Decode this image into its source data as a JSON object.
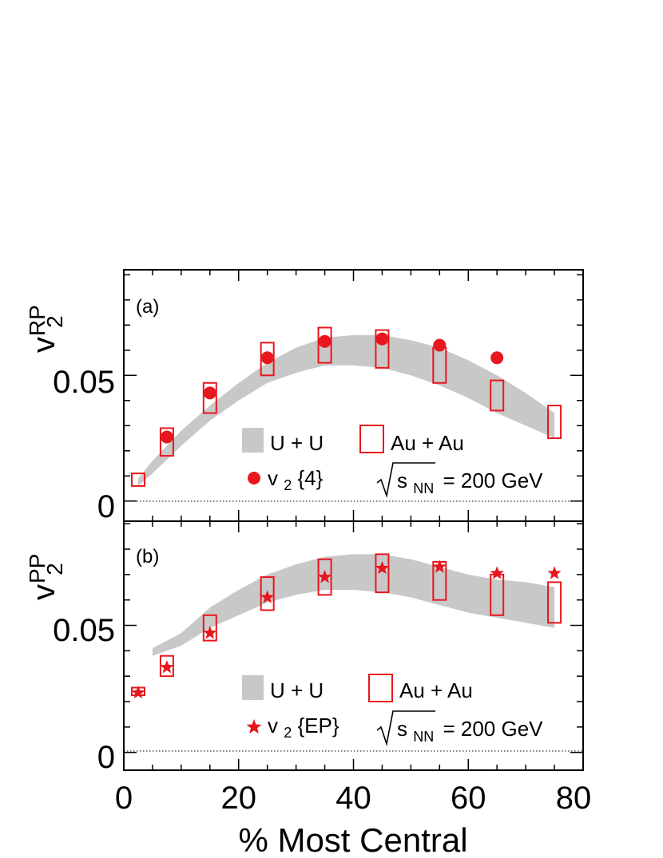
{
  "chart_data": [
    {
      "type": "scatter",
      "panel_label": "(a)",
      "ylabel": {
        "main": "v",
        "sub": "2",
        "sup": "RP"
      },
      "xlabel": "% Most Central",
      "xlim": [
        0,
        80
      ],
      "ylim": [
        -0.008,
        0.092
      ],
      "yticks": [
        {
          "value": 0,
          "label": "0"
        },
        {
          "value": 0.05,
          "label": "0.05"
        }
      ],
      "uu_band": {
        "name": "U + U",
        "color": "#c8c8c8",
        "x": [
          2.5,
          5,
          10,
          15,
          20,
          25,
          30,
          35,
          40,
          45,
          50,
          55,
          60,
          65,
          70,
          75
        ],
        "upper": [
          0.009,
          0.016,
          0.028,
          0.038,
          0.047,
          0.055,
          0.061,
          0.065,
          0.066,
          0.066,
          0.064,
          0.061,
          0.056,
          0.05,
          0.043,
          0.035
        ],
        "lower": [
          0.006,
          0.011,
          0.022,
          0.032,
          0.04,
          0.047,
          0.051,
          0.054,
          0.054,
          0.053,
          0.05,
          0.046,
          0.041,
          0.035,
          0.03,
          0.025
        ]
      },
      "auau_boxes": {
        "name": "Au + Au",
        "color": "#e8161d",
        "boxes": [
          {
            "x": 2.5,
            "low": 0.006,
            "high": 0.011
          },
          {
            "x": 7.5,
            "low": 0.018,
            "high": 0.029
          },
          {
            "x": 15,
            "low": 0.035,
            "high": 0.047
          },
          {
            "x": 25,
            "low": 0.05,
            "high": 0.063
          },
          {
            "x": 35,
            "low": 0.055,
            "high": 0.069
          },
          {
            "x": 45,
            "low": 0.053,
            "high": 0.068
          },
          {
            "x": 55,
            "low": 0.047,
            "high": 0.061
          },
          {
            "x": 65,
            "low": 0.036,
            "high": 0.048
          },
          {
            "x": 75,
            "low": 0.025,
            "high": 0.038
          }
        ]
      },
      "points": {
        "name": "v",
        "sub": "2",
        "suffix": "{4}",
        "marker": "circle",
        "color": "#e8161d",
        "x": [
          7.5,
          15,
          25,
          35,
          45,
          55,
          65
        ],
        "y": [
          0.0255,
          0.043,
          0.057,
          0.0635,
          0.0645,
          0.062,
          0.057
        ],
        "err": [
          0.0012,
          0.001,
          0.0008,
          0.0008,
          0.0008,
          0.001,
          0.002
        ]
      },
      "energy_label": {
        "prefix": "s",
        "sub": "NN",
        "text": "= 200 GeV"
      }
    },
    {
      "type": "scatter",
      "panel_label": "(b)",
      "ylabel": {
        "main": "v",
        "sub": "2",
        "sup": "PP"
      },
      "xlabel": "% Most Central",
      "xlim": [
        0,
        80
      ],
      "xticks": [
        {
          "value": 0,
          "label": "0"
        },
        {
          "value": 20,
          "label": "20"
        },
        {
          "value": 40,
          "label": "40"
        },
        {
          "value": 60,
          "label": "60"
        },
        {
          "value": 80,
          "label": "80"
        }
      ],
      "ylim": [
        -0.007,
        0.091
      ],
      "yticks": [
        {
          "value": 0,
          "label": "0"
        },
        {
          "value": 0.05,
          "label": "0.05"
        }
      ],
      "uu_band": {
        "name": "U + U",
        "color": "#c8c8c8",
        "x": [
          5,
          10,
          15,
          20,
          25,
          30,
          35,
          40,
          45,
          50,
          55,
          60,
          65,
          70,
          75
        ],
        "upper": [
          0.041,
          0.047,
          0.057,
          0.064,
          0.07,
          0.074,
          0.077,
          0.078,
          0.078,
          0.076,
          0.073,
          0.07,
          0.068,
          0.067,
          0.065
        ],
        "lower": [
          0.038,
          0.042,
          0.049,
          0.054,
          0.059,
          0.062,
          0.064,
          0.064,
          0.063,
          0.061,
          0.058,
          0.055,
          0.053,
          0.051,
          0.049
        ]
      },
      "auau_boxes": {
        "name": "Au + Au",
        "color": "#e8161d",
        "boxes": [
          {
            "x": 2.5,
            "low": 0.0225,
            "high": 0.0255
          },
          {
            "x": 7.5,
            "low": 0.03,
            "high": 0.038
          },
          {
            "x": 15,
            "low": 0.044,
            "high": 0.054
          },
          {
            "x": 25,
            "low": 0.056,
            "high": 0.069
          },
          {
            "x": 35,
            "low": 0.062,
            "high": 0.076
          },
          {
            "x": 45,
            "low": 0.063,
            "high": 0.078
          },
          {
            "x": 55,
            "low": 0.06,
            "high": 0.075
          },
          {
            "x": 65,
            "low": 0.054,
            "high": 0.07
          },
          {
            "x": 75,
            "low": 0.051,
            "high": 0.067
          }
        ]
      },
      "points": {
        "name": "v",
        "sub": "2",
        "suffix": "{EP}",
        "marker": "star",
        "color": "#e8161d",
        "x": [
          2.5,
          7.5,
          15,
          25,
          35,
          45,
          55,
          65,
          75
        ],
        "y": [
          0.0235,
          0.0335,
          0.047,
          0.061,
          0.069,
          0.0725,
          0.073,
          0.0705,
          0.0705
        ],
        "err": [
          0,
          0,
          0,
          0,
          0,
          0,
          0,
          0,
          0
        ]
      },
      "energy_label": {
        "prefix": "s",
        "sub": "NN",
        "text": "= 200 GeV"
      }
    }
  ]
}
